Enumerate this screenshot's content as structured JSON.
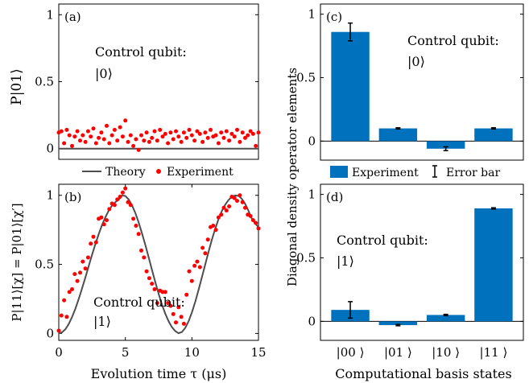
{
  "chart_data": [
    {
      "panel": "(a)",
      "type": "scatter",
      "ylabel": "P|01⟩",
      "xlabel": "",
      "xlim": [
        0,
        15
      ],
      "ylim": [
        -0.08,
        1.08
      ],
      "yticks": [
        "0",
        "0.5",
        "1"
      ],
      "xticks": [],
      "annotation": [
        "Control qubit:",
        "|0⟩"
      ],
      "series": [
        {
          "name": "Theory",
          "kind": "line",
          "color": "#4d4d4d",
          "x": [
            0,
            15
          ],
          "y": [
            0,
            0
          ]
        },
        {
          "name": "Experiment",
          "kind": "points",
          "color": "#ff0000",
          "x": [
            0.0,
            0.2,
            0.4,
            0.6,
            0.8,
            1.0,
            1.2,
            1.4,
            1.6,
            1.8,
            2.0,
            2.2,
            2.4,
            2.6,
            2.8,
            3.0,
            3.2,
            3.4,
            3.6,
            3.8,
            4.0,
            4.2,
            4.4,
            4.6,
            4.8,
            5.0,
            5.2,
            5.4,
            5.6,
            5.8,
            6.0,
            6.2,
            6.4,
            6.6,
            6.8,
            7.0,
            7.2,
            7.4,
            7.6,
            7.8,
            8.0,
            8.2,
            8.4,
            8.6,
            8.8,
            9.0,
            9.2,
            9.4,
            9.6,
            9.8,
            10.0,
            10.2,
            10.4,
            10.6,
            10.8,
            11.0,
            11.2,
            11.4,
            11.6,
            11.8,
            12.0,
            12.2,
            12.4,
            12.6,
            12.8,
            13.0,
            13.2,
            13.4,
            13.6,
            13.8,
            14.0,
            14.2,
            14.4,
            14.6,
            14.8,
            15.0
          ],
          "y": [
            0.12,
            0.13,
            0.04,
            0.14,
            0.1,
            0.02,
            0.09,
            0.13,
            0.06,
            0.1,
            0.05,
            0.13,
            0.09,
            0.15,
            0.04,
            0.08,
            0.12,
            0.07,
            0.17,
            0.04,
            0.1,
            0.14,
            0.06,
            0.16,
            0.09,
            0.21,
            0.05,
            0.1,
            0.02,
            0.07,
            -0.01,
            0.1,
            0.06,
            0.12,
            0.05,
            0.08,
            0.13,
            0.06,
            0.14,
            0.09,
            0.11,
            0.04,
            0.12,
            0.07,
            0.13,
            0.09,
            0.05,
            0.12,
            0.08,
            0.14,
            0.1,
            0.06,
            0.13,
            0.11,
            0.05,
            0.12,
            0.08,
            0.14,
            0.09,
            0.1,
            0.04,
            0.12,
            0.08,
            0.13,
            0.06,
            0.11,
            0.09,
            0.14,
            0.05,
            0.12,
            0.08,
            0.1,
            0.13,
            0.11,
            0.02,
            0.12
          ]
        }
      ]
    },
    {
      "panel": "(b)",
      "type": "scatter",
      "ylabel": "P|11⟩[χ] = P|01⟩[χ′]",
      "xlabel": "Evolution time τ (μs)",
      "xlim": [
        0,
        15
      ],
      "ylim": [
        -0.05,
        1.08
      ],
      "yticks": [
        "0",
        "0.5",
        "1"
      ],
      "xticks": [
        "0",
        "5",
        "10",
        "15"
      ],
      "annotation": [
        "Control qubit:",
        "|1⟩"
      ],
      "series": [
        {
          "name": "Theory",
          "kind": "line",
          "color": "#4d4d4d",
          "x": [
            0.0,
            0.25,
            0.5,
            0.75,
            1.0,
            1.25,
            1.5,
            1.75,
            2.0,
            2.25,
            2.5,
            2.75,
            3.0,
            3.25,
            3.5,
            3.75,
            4.0,
            4.25,
            4.5,
            4.75,
            5.0,
            5.25,
            5.5,
            5.75,
            6.0,
            6.25,
            6.5,
            6.75,
            7.0,
            7.25,
            7.5,
            7.75,
            8.0,
            8.25,
            8.5,
            8.75,
            9.0,
            9.25,
            9.5,
            9.75,
            10.0,
            10.25,
            10.5,
            10.75,
            11.0,
            11.25,
            11.5,
            11.75,
            12.0,
            12.25,
            12.5,
            12.75,
            13.0,
            13.25,
            13.5,
            13.75,
            14.0,
            14.25,
            14.5,
            14.75,
            15.0
          ],
          "y": [
            0.0,
            0.008,
            0.031,
            0.069,
            0.119,
            0.18,
            0.25,
            0.326,
            0.406,
            0.488,
            0.569,
            0.647,
            0.719,
            0.785,
            0.842,
            0.889,
            0.925,
            0.951,
            0.967,
            0.999,
            0.995,
            0.97,
            0.928,
            0.872,
            0.804,
            0.726,
            0.641,
            0.552,
            0.461,
            0.372,
            0.287,
            0.21,
            0.143,
            0.088,
            0.046,
            0.017,
            0.002,
            0.01,
            0.04,
            0.088,
            0.152,
            0.229,
            0.315,
            0.406,
            0.499,
            0.591,
            0.678,
            0.758,
            0.828,
            0.886,
            0.932,
            0.966,
            0.99,
            0.999,
            0.996,
            0.975,
            0.938,
            0.888,
            0.832,
            0.795,
            0.77
          ]
        },
        {
          "name": "Experiment",
          "kind": "points",
          "color": "#ff0000",
          "x": [
            0.0,
            0.2,
            0.4,
            0.6,
            0.8,
            1.0,
            1.2,
            1.4,
            1.6,
            1.8,
            2.0,
            2.2,
            2.4,
            2.6,
            2.8,
            3.0,
            3.2,
            3.4,
            3.6,
            3.8,
            4.0,
            4.2,
            4.4,
            4.6,
            4.8,
            5.0,
            5.2,
            5.4,
            5.6,
            5.8,
            6.0,
            6.2,
            6.4,
            6.6,
            6.8,
            7.0,
            7.2,
            7.4,
            7.6,
            7.8,
            8.0,
            8.2,
            8.4,
            8.6,
            8.8,
            9.0,
            9.2,
            9.4,
            9.6,
            9.8,
            10.0,
            10.2,
            10.4,
            10.6,
            10.8,
            11.0,
            11.2,
            11.4,
            11.6,
            11.8,
            12.0,
            12.2,
            12.4,
            12.6,
            12.8,
            13.0,
            13.2,
            13.4,
            13.6,
            13.8,
            14.0,
            14.2,
            14.4,
            14.6,
            14.8,
            15.0
          ],
          "y": [
            0.02,
            0.13,
            0.24,
            0.12,
            0.3,
            0.32,
            0.43,
            0.38,
            0.44,
            0.52,
            0.47,
            0.55,
            0.65,
            0.7,
            0.66,
            0.83,
            0.84,
            0.79,
            0.82,
            0.9,
            0.94,
            0.93,
            0.97,
            0.99,
            1.02,
            1.05,
            0.95,
            0.93,
            0.83,
            0.78,
            0.72,
            0.6,
            0.55,
            0.45,
            0.4,
            0.36,
            0.32,
            0.22,
            0.31,
            0.3,
            0.3,
            0.22,
            0.2,
            0.14,
            0.08,
            0.19,
            0.12,
            0.07,
            0.28,
            0.45,
            0.38,
            0.49,
            0.52,
            0.48,
            0.62,
            0.58,
            0.68,
            0.77,
            0.78,
            0.75,
            0.84,
            0.86,
            0.91,
            0.89,
            0.92,
            0.99,
            0.98,
            0.96,
            1.0,
            0.95,
            0.91,
            0.86,
            0.85,
            0.82,
            0.8,
            0.76
          ]
        }
      ]
    },
    {
      "panel": "(c)",
      "type": "bar",
      "categories": [
        "|00 ⟩",
        "|01 ⟩",
        "|10 ⟩",
        "|11 ⟩"
      ],
      "values": [
        0.86,
        0.1,
        -0.06,
        0.1
      ],
      "errors": [
        0.07,
        0.005,
        0.015,
        0.005
      ],
      "ylim": [
        -0.15,
        1.08
      ],
      "yticks": [
        "0",
        "0.5",
        "1"
      ],
      "annotation": [
        "Control qubit:",
        "|0⟩"
      ],
      "color": "#0072bd"
    },
    {
      "panel": "(d)",
      "type": "bar",
      "categories": [
        "|00 ⟩",
        "|01 ⟩",
        "|10 ⟩",
        "|11 ⟩"
      ],
      "values": [
        0.09,
        -0.03,
        0.05,
        0.89
      ],
      "errors": [
        0.065,
        0.005,
        0.005,
        0.005
      ],
      "ylim": [
        -0.15,
        1.08
      ],
      "yticks": [
        "0",
        "0.5",
        "1"
      ],
      "annotation": [
        "Control qubit:",
        "|1⟩"
      ],
      "xlabel": "Computational basis states",
      "color": "#0072bd"
    }
  ],
  "shared_ylabel_right": "Diagonal density operator elements",
  "legend_left": {
    "theory": "Theory",
    "experiment": "Experiment"
  },
  "legend_right": {
    "experiment": "Experiment",
    "error_bar": "Error bar"
  }
}
